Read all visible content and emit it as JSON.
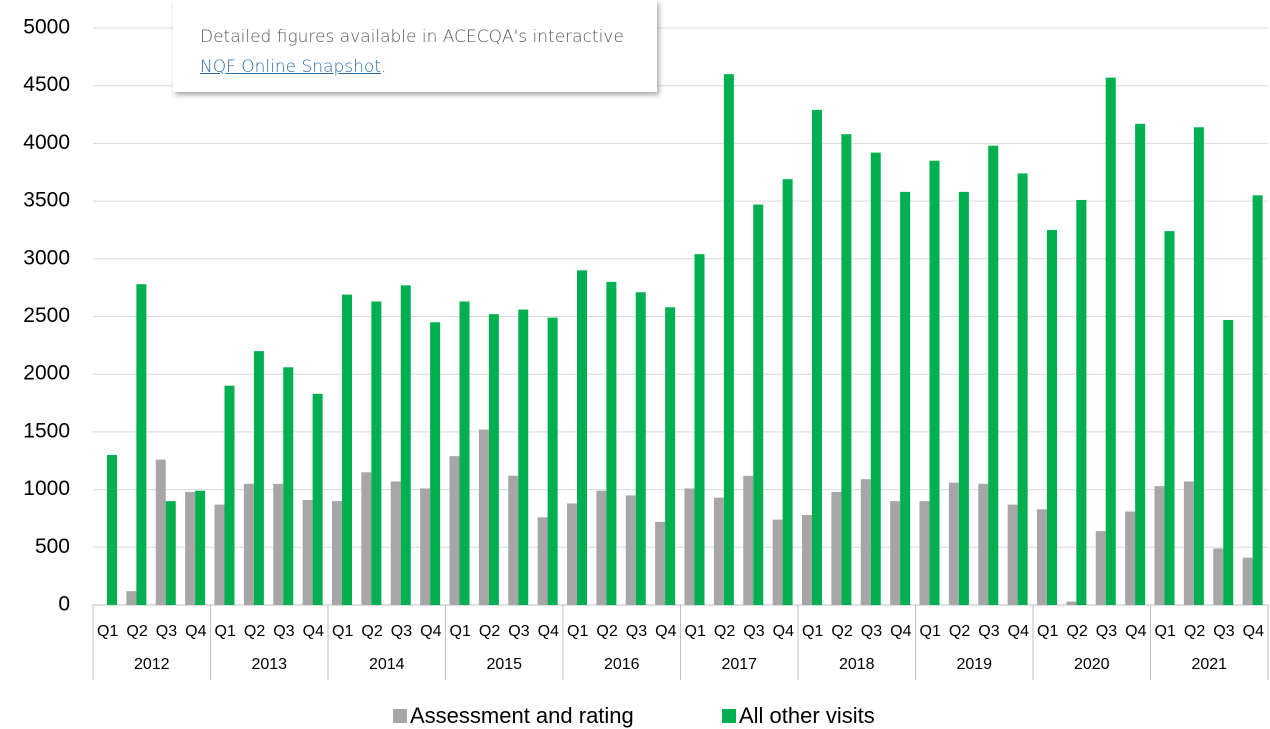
{
  "chart_data": {
    "type": "bar",
    "categories": [
      "Q1",
      "Q2",
      "Q3",
      "Q4",
      "Q1",
      "Q2",
      "Q3",
      "Q4",
      "Q1",
      "Q2",
      "Q3",
      "Q4",
      "Q1",
      "Q2",
      "Q3",
      "Q4",
      "Q1",
      "Q2",
      "Q3",
      "Q4",
      "Q1",
      "Q2",
      "Q3",
      "Q4",
      "Q1",
      "Q2",
      "Q3",
      "Q4",
      "Q1",
      "Q2",
      "Q3",
      "Q4",
      "Q1",
      "Q2",
      "Q3",
      "Q4",
      "Q1",
      "Q2",
      "Q3",
      "Q4"
    ],
    "groups": [
      "2012",
      "2013",
      "2014",
      "2015",
      "2016",
      "2017",
      "2018",
      "2019",
      "2020",
      "2021"
    ],
    "series": [
      {
        "name": "Assessment and rating",
        "color": "#a6a6a6",
        "values": [
          0,
          120,
          1260,
          980,
          870,
          1050,
          1050,
          910,
          900,
          1150,
          1070,
          1010,
          1290,
          1520,
          1120,
          760,
          880,
          990,
          950,
          720,
          1010,
          930,
          1120,
          740,
          780,
          980,
          1090,
          900,
          900,
          1060,
          1050,
          870,
          830,
          30,
          640,
          810,
          1030,
          1070,
          490,
          410
        ]
      },
      {
        "name": "All other visits",
        "color": "#00b050",
        "values": [
          1300,
          2780,
          900,
          990,
          1900,
          2200,
          2060,
          1830,
          2690,
          2630,
          2770,
          2450,
          2630,
          2520,
          2560,
          2490,
          2900,
          2800,
          2710,
          2580,
          3040,
          4600,
          3470,
          3690,
          4290,
          4080,
          3920,
          3580,
          3850,
          3580,
          3980,
          3740,
          3250,
          3510,
          4570,
          4170,
          3240,
          4140,
          2470,
          3550
        ]
      }
    ],
    "ylim": [
      0,
      5000
    ],
    "yticks": [
      0,
      500,
      1000,
      1500,
      2000,
      2500,
      3000,
      3500,
      4000,
      4500,
      5000
    ],
    "grid": true,
    "legend": "bottom",
    "annotation": {
      "text_before": "Detailed figures available in ACECQA's interactive ",
      "link": "NQF Online Snapshot",
      "text_after": "."
    }
  }
}
